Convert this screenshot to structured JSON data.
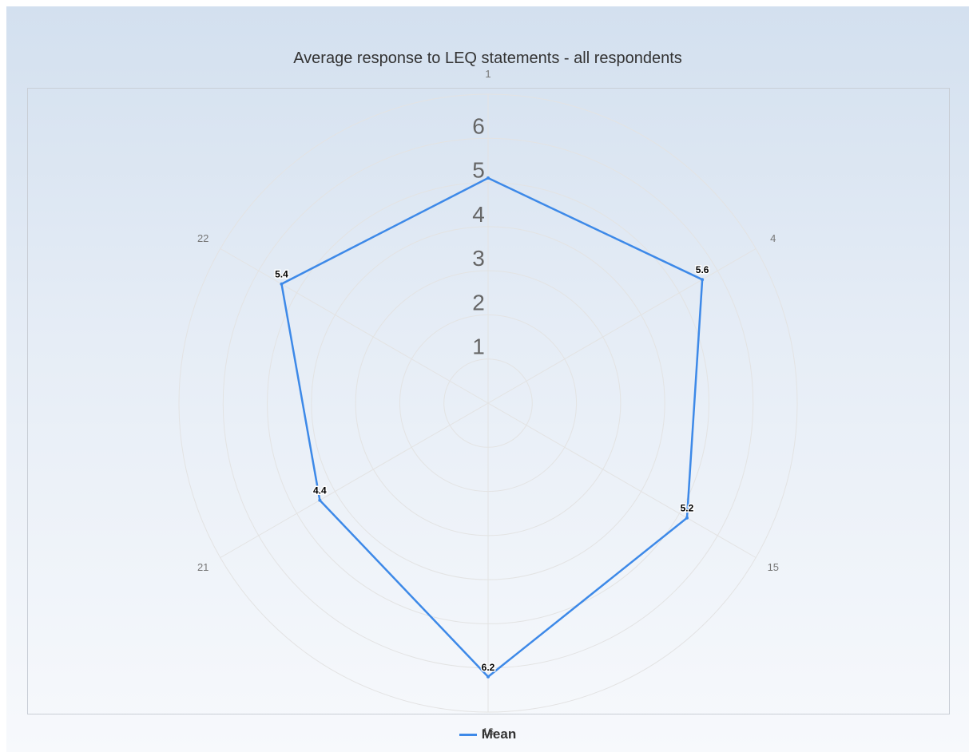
{
  "chart_data": {
    "type": "radar",
    "title": "Average response to LEQ statements - all respondents",
    "categories": [
      "1",
      "4",
      "15",
      "16",
      "21",
      "22"
    ],
    "series": [
      {
        "name": "Mean",
        "values": [
          5.1,
          5.6,
          5.2,
          6.2,
          4.4,
          5.4
        ],
        "labels": [
          "",
          "5.6",
          "5.2",
          "6.2",
          "4.4",
          "5.4"
        ]
      }
    ],
    "radial_ticks": [
      "1",
      "2",
      "3",
      "4",
      "5",
      "6"
    ],
    "rmin": 0,
    "rmax": 7,
    "grid": true,
    "legend_position": "bottom"
  },
  "colors": {
    "series": "#3d89e8",
    "grid": "#e3e3e3",
    "tick_text": "#666666",
    "category_text": "#777777",
    "label_text": "#000000"
  }
}
